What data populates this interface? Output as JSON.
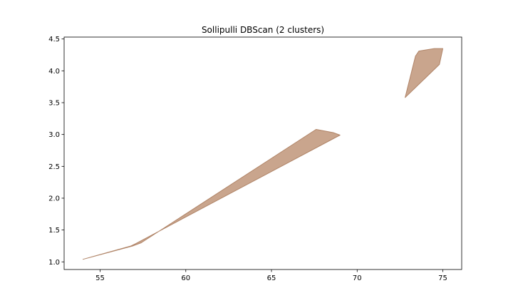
{
  "chart_data": {
    "type": "area",
    "title": "Sollipulli DBScan (2 clusters)",
    "xlabel": "",
    "ylabel": "",
    "xlim": [
      52.9,
      76.1
    ],
    "ylim": [
      0.88,
      4.53
    ],
    "x_ticks": [
      55,
      60,
      65,
      70,
      75
    ],
    "y_ticks": [
      1.0,
      1.5,
      2.0,
      2.5,
      3.0,
      3.5,
      4.0,
      4.5
    ],
    "x_tick_labels": [
      "55",
      "60",
      "65",
      "70",
      "75"
    ],
    "y_tick_labels": [
      "1.0",
      "1.5",
      "2.0",
      "2.5",
      "3.0",
      "3.5",
      "4.0",
      "4.5"
    ],
    "grid": false,
    "legend": "none",
    "fill_color": "#c9a58d",
    "edge_color": "#b08467",
    "series": [
      {
        "points": [
          [
            54.0,
            1.04
          ],
          [
            56.9,
            1.25
          ],
          [
            57.4,
            1.3
          ],
          [
            67.6,
            3.08
          ],
          [
            68.6,
            3.03
          ],
          [
            69.0,
            2.99
          ],
          [
            57.1,
            1.29
          ],
          [
            56.8,
            1.25
          ]
        ]
      },
      {
        "points": [
          [
            72.8,
            3.58
          ],
          [
            73.4,
            4.23
          ],
          [
            73.6,
            4.31
          ],
          [
            74.5,
            4.35
          ],
          [
            75.0,
            4.35
          ],
          [
            74.8,
            4.1
          ]
        ]
      }
    ]
  }
}
